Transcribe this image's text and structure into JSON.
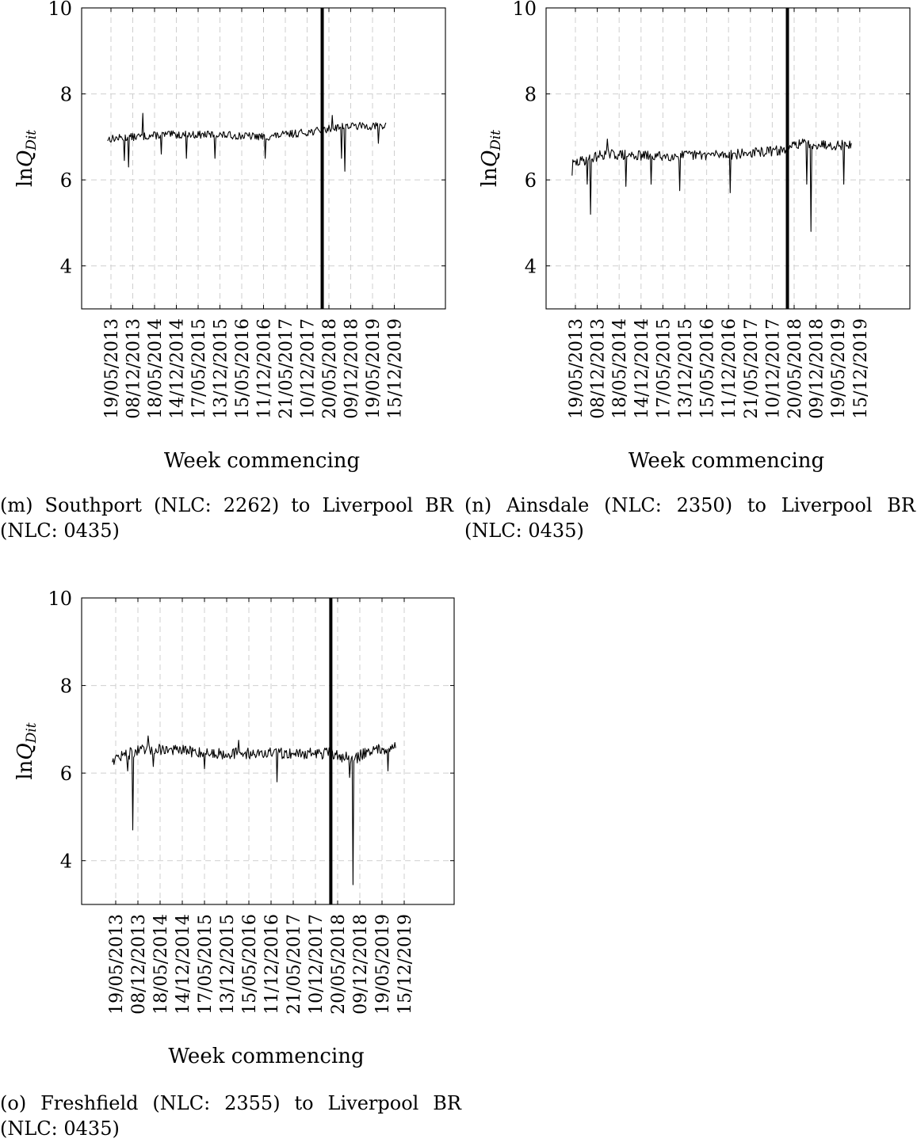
{
  "chart_data": [
    {
      "type": "line",
      "panel": "m",
      "caption": "(m) Southport (NLC: 2262) to Liverpool BR (NLC: 0435)",
      "xlabel": "Week commencing",
      "ylabel_main": "ln",
      "ylabel_var": "Q",
      "ylabel_sub": "Dit",
      "ylim": [
        3,
        10
      ],
      "yticks": [
        4,
        6,
        8,
        10
      ],
      "grid": true,
      "xtick_labels": [
        "19/05/2013",
        "08/12/2013",
        "18/05/2014",
        "14/12/2014",
        "17/05/2015",
        "13/12/2015",
        "15/05/2016",
        "11/12/2016",
        "21/05/2017",
        "10/12/2017",
        "20/05/2018",
        "09/12/2018",
        "19/05/2019",
        "15/12/2019"
      ],
      "break_week_index": 258,
      "series": [
        {
          "base": [
            [
              0,
              6.95
            ],
            [
              70,
              7.05
            ],
            [
              130,
              7.05
            ],
            [
              190,
              7.0
            ],
            [
              258,
              7.15
            ],
            [
              280,
              7.25
            ],
            [
              334,
              7.25
            ]
          ],
          "noise": 0.09,
          "seed": 13,
          "spikes": [
            [
              22,
              6.45
            ],
            [
              27,
              6.3
            ],
            [
              44,
              7.55
            ],
            [
              66,
              6.6
            ],
            [
              96,
              6.5
            ],
            [
              130,
              6.5
            ],
            [
              190,
              6.5
            ],
            [
              270,
              7.5
            ],
            [
              281,
              6.5
            ],
            [
              285,
              6.2
            ],
            [
              325,
              6.85
            ]
          ]
        }
      ]
    },
    {
      "type": "line",
      "panel": "n",
      "caption": "(n) Ainsdale (NLC: 2350) to Liverpool BR (NLC: 0435)",
      "xlabel": "Week commencing",
      "ylabel_main": "ln",
      "ylabel_var": "Q",
      "ylabel_sub": "Dit",
      "ylim": [
        3,
        10
      ],
      "yticks": [
        4,
        6,
        8,
        10
      ],
      "grid": true,
      "xtick_labels": [
        "19/05/2013",
        "08/12/2013",
        "18/05/2014",
        "14/12/2014",
        "17/05/2015",
        "13/12/2015",
        "15/05/2016",
        "11/12/2016",
        "21/05/2017",
        "10/12/2017",
        "20/05/2018",
        "09/12/2018",
        "19/05/2019",
        "15/12/2019"
      ],
      "break_week_index": 258,
      "series": [
        {
          "base": [
            [
              0,
              6.35
            ],
            [
              40,
              6.6
            ],
            [
              100,
              6.55
            ],
            [
              200,
              6.6
            ],
            [
              258,
              6.7
            ],
            [
              270,
              6.85
            ],
            [
              334,
              6.8
            ]
          ],
          "noise": 0.12,
          "seed": 29,
          "spikes": [
            [
              2,
              6.1
            ],
            [
              20,
              5.9
            ],
            [
              24,
              5.2
            ],
            [
              44,
              6.95
            ],
            [
              66,
              5.85
            ],
            [
              96,
              5.9
            ],
            [
              130,
              5.75
            ],
            [
              190,
              5.7
            ],
            [
              281,
              5.9
            ],
            [
              286,
              4.8
            ],
            [
              325,
              5.9
            ]
          ]
        }
      ]
    },
    {
      "type": "line",
      "panel": "o",
      "caption": "(o) Freshfield (NLC: 2355) to Liverpool BR (NLC: 0435)",
      "xlabel": "Week commencing",
      "ylabel_main": "ln",
      "ylabel_var": "Q",
      "ylabel_sub": "Dit",
      "ylim": [
        3,
        10
      ],
      "yticks": [
        4,
        6,
        8,
        10
      ],
      "grid": true,
      "xtick_labels": [
        "19/05/2013",
        "08/12/2013",
        "18/05/2014",
        "14/12/2014",
        "17/05/2015",
        "13/12/2015",
        "15/05/2016",
        "11/12/2016",
        "21/05/2017",
        "10/12/2017",
        "20/05/2018",
        "09/12/2018",
        "19/05/2019",
        "15/12/2019"
      ],
      "break_week_index": 258,
      "series": [
        {
          "base": [
            [
              0,
              6.3
            ],
            [
              30,
              6.5
            ],
            [
              60,
              6.55
            ],
            [
              120,
              6.45
            ],
            [
              200,
              6.45
            ],
            [
              258,
              6.45
            ],
            [
              285,
              6.3
            ],
            [
              300,
              6.5
            ],
            [
              334,
              6.6
            ]
          ],
          "noise": 0.13,
          "seed": 47,
          "spikes": [
            [
              20,
              6.05
            ],
            [
              26,
              4.7
            ],
            [
              44,
              6.85
            ],
            [
              50,
              6.15
            ],
            [
              110,
              6.1
            ],
            [
              150,
              6.75
            ],
            [
              195,
              5.8
            ],
            [
              280,
              5.9
            ],
            [
              284,
              3.45
            ],
            [
              325,
              6.05
            ]
          ]
        }
      ]
    }
  ]
}
